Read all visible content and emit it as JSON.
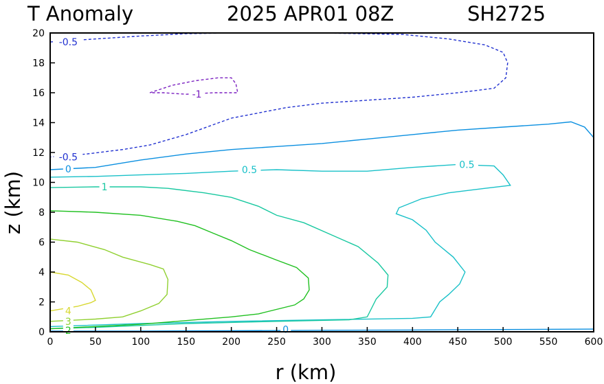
{
  "header": {
    "variable": "T Anomaly",
    "datetime": "2025 APR01 08Z",
    "storm_id": "SH2725"
  },
  "chart_data": {
    "type": "contour",
    "title": "T Anomaly",
    "xlabel": "r (km)",
    "ylabel": "z (km)",
    "xlim": [
      0,
      600
    ],
    "ylim": [
      0,
      20
    ],
    "x_ticks": [
      0,
      50,
      100,
      150,
      200,
      250,
      300,
      350,
      400,
      450,
      500,
      550,
      600
    ],
    "y_ticks": [
      0,
      2,
      4,
      6,
      8,
      10,
      12,
      14,
      16,
      18,
      20
    ],
    "x_tick_labels": [
      "0",
      "50",
      "100",
      "150",
      "200",
      "250",
      "300",
      "350",
      "400",
      "450",
      "500",
      "550",
      "600"
    ],
    "y_tick_labels": [
      "0",
      "2",
      "4",
      "6",
      "8",
      "10",
      "12",
      "14",
      "16",
      "18",
      "20"
    ],
    "contours": [
      {
        "level": -1,
        "label": "-1",
        "color": "#7a1fc0",
        "dashed": true,
        "labels_at": [
          [
            162,
            15.9
          ]
        ],
        "points": [
          [
            110,
            16.0
          ],
          [
            135,
            16.5
          ],
          [
            160,
            16.8
          ],
          [
            185,
            17.0
          ],
          [
            200,
            17.0
          ],
          [
            205,
            16.6
          ],
          [
            207,
            16.0
          ],
          [
            180,
            16.0
          ],
          [
            150,
            15.9
          ],
          [
            125,
            16.0
          ],
          [
            110,
            16.0
          ]
        ]
      },
      {
        "level": -0.5,
        "label": "-0.5",
        "color": "#2030d0",
        "dashed": true,
        "labels_at": [
          [
            20,
            19.4
          ],
          [
            20,
            11.7
          ]
        ],
        "points": [
          [
            0,
            19.4
          ],
          [
            50,
            19.6
          ],
          [
            100,
            19.8
          ],
          [
            150,
            19.95
          ],
          [
            200,
            20.0
          ],
          [
            300,
            20.0
          ],
          [
            390,
            19.9
          ],
          [
            440,
            19.6
          ],
          [
            480,
            19.2
          ],
          [
            500,
            18.7
          ],
          [
            505,
            18.0
          ],
          [
            503,
            17.0
          ],
          [
            490,
            16.3
          ],
          [
            450,
            16.0
          ],
          [
            400,
            15.7
          ],
          [
            350,
            15.5
          ],
          [
            300,
            15.3
          ],
          [
            260,
            15.0
          ],
          [
            200,
            14.3
          ],
          [
            150,
            13.2
          ],
          [
            110,
            12.5
          ],
          [
            80,
            12.2
          ],
          [
            40,
            11.9
          ],
          [
            0,
            11.7
          ]
        ]
      },
      {
        "level": 0,
        "label": "0",
        "color": "#0a8fe0",
        "dashed": false,
        "labels_at": [
          [
            20,
            10.9
          ],
          [
            260,
            0.15
          ]
        ],
        "points": [
          [
            0,
            10.85
          ],
          [
            50,
            11.0
          ],
          [
            100,
            11.5
          ],
          [
            150,
            11.9
          ],
          [
            200,
            12.2
          ],
          [
            250,
            12.4
          ],
          [
            300,
            12.6
          ],
          [
            350,
            12.9
          ],
          [
            400,
            13.2
          ],
          [
            450,
            13.5
          ],
          [
            500,
            13.7
          ],
          [
            550,
            13.9
          ],
          [
            575,
            14.05
          ],
          [
            590,
            13.7
          ],
          [
            600,
            13.0
          ]
        ]
      },
      {
        "level": 0,
        "label": "0",
        "color": "#0a8fe0",
        "dashed": false,
        "labels_at": [],
        "points": [
          [
            0,
            0.05
          ],
          [
            100,
            0.05
          ],
          [
            200,
            0.07
          ],
          [
            300,
            0.1
          ],
          [
            400,
            0.12
          ],
          [
            500,
            0.15
          ],
          [
            600,
            0.18
          ]
        ]
      },
      {
        "level": 0.5,
        "label": "0.5",
        "color": "#18c0c8",
        "dashed": false,
        "labels_at": [
          [
            220,
            10.85
          ],
          [
            460,
            11.2
          ]
        ],
        "points": [
          [
            0,
            10.35
          ],
          [
            50,
            10.4
          ],
          [
            100,
            10.5
          ],
          [
            150,
            10.6
          ],
          [
            200,
            10.75
          ],
          [
            250,
            10.85
          ],
          [
            300,
            10.75
          ],
          [
            350,
            10.75
          ],
          [
            400,
            11.0
          ],
          [
            450,
            11.2
          ],
          [
            490,
            11.1
          ],
          [
            500,
            10.5
          ],
          [
            508,
            9.8
          ],
          [
            480,
            9.6
          ],
          [
            440,
            9.3
          ],
          [
            410,
            8.9
          ],
          [
            385,
            8.3
          ],
          [
            382,
            7.9
          ],
          [
            400,
            7.5
          ],
          [
            415,
            6.8
          ],
          [
            425,
            6.0
          ],
          [
            445,
            5.0
          ],
          [
            458,
            4.0
          ],
          [
            452,
            3.2
          ],
          [
            440,
            2.5
          ],
          [
            430,
            2.0
          ],
          [
            420,
            1.0
          ],
          [
            400,
            0.9
          ],
          [
            300,
            0.8
          ],
          [
            200,
            0.7
          ],
          [
            100,
            0.55
          ],
          [
            0,
            0.35
          ]
        ]
      },
      {
        "level": 1,
        "label": "1",
        "color": "#18c8a0",
        "dashed": false,
        "labels_at": [
          [
            60,
            9.7
          ]
        ],
        "points": [
          [
            0,
            9.65
          ],
          [
            50,
            9.7
          ],
          [
            100,
            9.7
          ],
          [
            130,
            9.6
          ],
          [
            170,
            9.3
          ],
          [
            200,
            9.0
          ],
          [
            230,
            8.4
          ],
          [
            250,
            7.8
          ],
          [
            280,
            7.3
          ],
          [
            310,
            6.5
          ],
          [
            340,
            5.7
          ],
          [
            362,
            4.6
          ],
          [
            373,
            3.8
          ],
          [
            372,
            3.0
          ],
          [
            360,
            2.2
          ],
          [
            350,
            1.0
          ],
          [
            330,
            0.8
          ],
          [
            250,
            0.7
          ],
          [
            150,
            0.55
          ],
          [
            50,
            0.3
          ],
          [
            0,
            0.2
          ]
        ]
      },
      {
        "level": 2,
        "label": "2",
        "color": "#20c020",
        "dashed": false,
        "labels_at": [
          [
            20,
            0.1
          ]
        ],
        "points": [
          [
            0,
            8.1
          ],
          [
            50,
            8.0
          ],
          [
            100,
            7.8
          ],
          [
            140,
            7.4
          ],
          [
            160,
            7.1
          ],
          [
            180,
            6.6
          ],
          [
            200,
            6.1
          ],
          [
            220,
            5.5
          ],
          [
            250,
            4.8
          ],
          [
            272,
            4.3
          ],
          [
            285,
            3.6
          ],
          [
            286,
            2.8
          ],
          [
            280,
            2.2
          ],
          [
            270,
            1.8
          ],
          [
            230,
            1.2
          ],
          [
            200,
            1.0
          ],
          [
            100,
            0.5
          ],
          [
            0,
            0.2
          ]
        ]
      },
      {
        "level": 3,
        "label": "3",
        "color": "#90d030",
        "dashed": false,
        "labels_at": [
          [
            20,
            0.7
          ]
        ],
        "points": [
          [
            0,
            6.2
          ],
          [
            30,
            6.0
          ],
          [
            60,
            5.5
          ],
          [
            80,
            5.0
          ],
          [
            110,
            4.5
          ],
          [
            125,
            4.2
          ],
          [
            130,
            3.5
          ],
          [
            129,
            2.5
          ],
          [
            120,
            1.9
          ],
          [
            100,
            1.4
          ],
          [
            80,
            1.0
          ],
          [
            50,
            0.85
          ],
          [
            0,
            0.7
          ]
        ]
      },
      {
        "level": 4,
        "label": "4",
        "color": "#d8d830",
        "dashed": false,
        "labels_at": [
          [
            20,
            1.4
          ]
        ],
        "points": [
          [
            0,
            4.0
          ],
          [
            20,
            3.8
          ],
          [
            35,
            3.3
          ],
          [
            45,
            2.8
          ],
          [
            50,
            2.1
          ],
          [
            45,
            1.95
          ],
          [
            30,
            1.7
          ],
          [
            0,
            1.4
          ]
        ]
      }
    ]
  }
}
